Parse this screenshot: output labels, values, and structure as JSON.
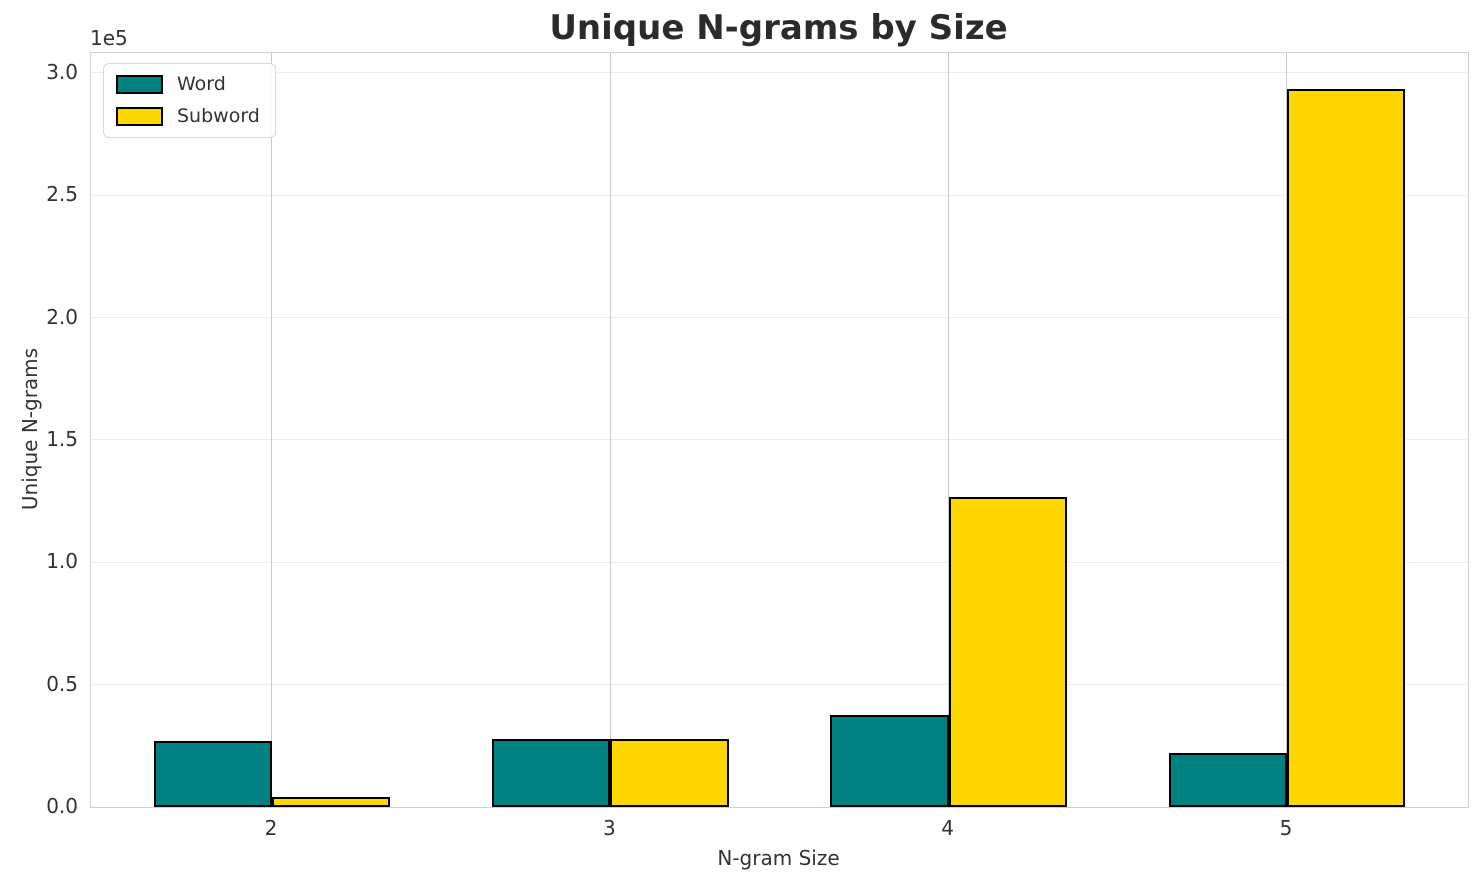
{
  "chart_data": {
    "type": "bar",
    "title": "Unique N-grams by Size",
    "xlabel": "N-gram Size",
    "ylabel": "Unique N-grams",
    "y_offset_label": "1e5",
    "categories": [
      2,
      3,
      4,
      5
    ],
    "xtick_labels": [
      "2",
      "3",
      "4",
      "5"
    ],
    "series": [
      {
        "name": "Word",
        "color": "#008080",
        "values": [
          27000,
          27800,
          37700,
          22100
        ]
      },
      {
        "name": "Subword",
        "color": "#FFD700",
        "values": [
          4100,
          28000,
          126900,
          293500
        ]
      }
    ],
    "bar_edge_color": "#000000",
    "bar_width_units": 0.35,
    "xlim": [
      1.465,
      5.535
    ],
    "ylim": [
      0,
      308200
    ],
    "ytick_values": [
      0,
      50000,
      100000,
      150000,
      200000,
      250000,
      300000
    ],
    "ytick_labels": [
      "0.0",
      "0.5",
      "1.0",
      "1.5",
      "2.0",
      "2.5",
      "3.0"
    ],
    "grid": true,
    "legend_position": "upper-left"
  }
}
